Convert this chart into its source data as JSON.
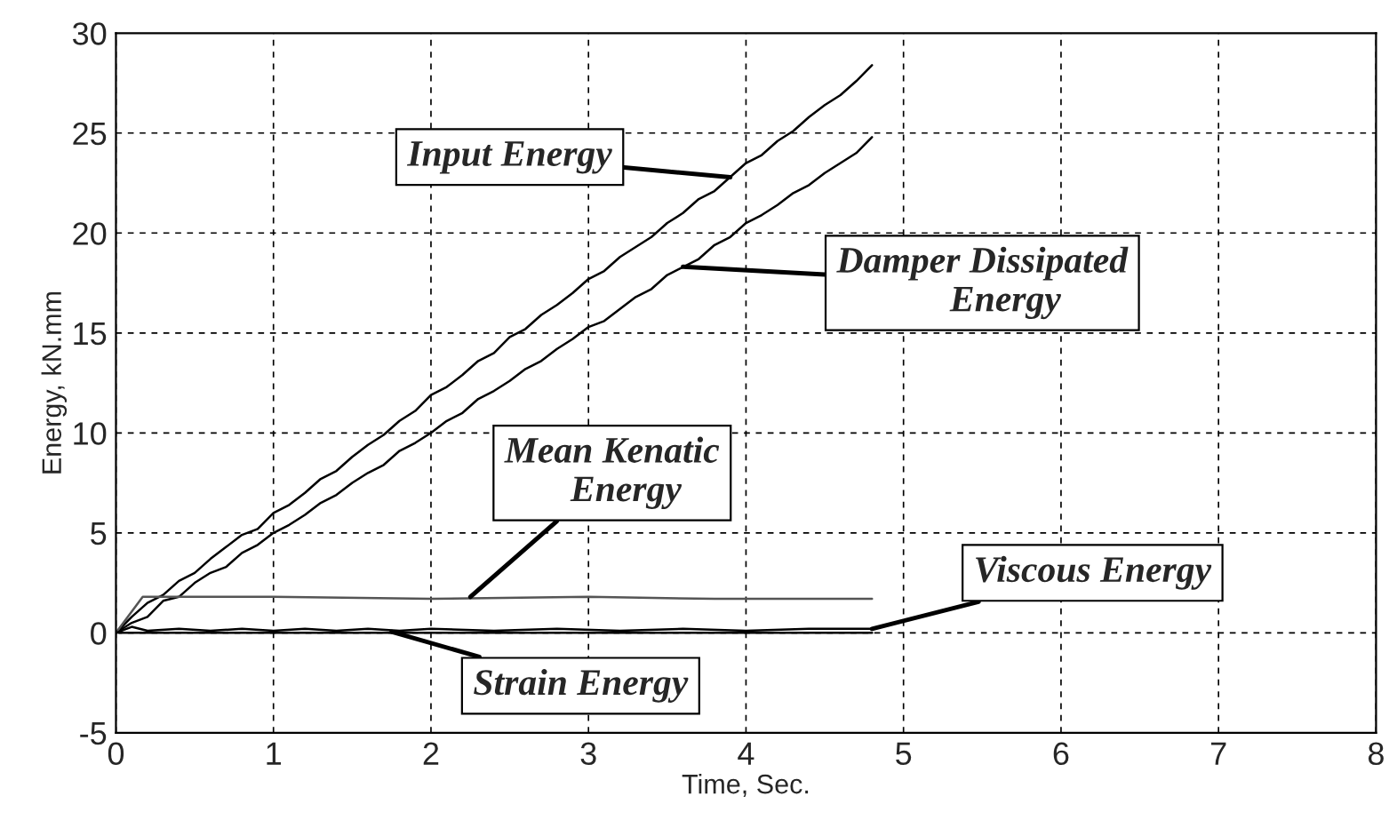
{
  "chart_data": {
    "type": "line",
    "xlabel": "Time, Sec.",
    "ylabel": "Energy, kN.mm",
    "xlim": [
      0,
      8
    ],
    "xticks": [
      0,
      1,
      2,
      3,
      4,
      5,
      6,
      7,
      8
    ],
    "ylim": [
      -5,
      30
    ],
    "yticks": [
      -5,
      0,
      5,
      10,
      15,
      20,
      25,
      30
    ],
    "grid": true,
    "line_style": "solid",
    "marker": "none",
    "series": [
      {
        "color": "#000000",
        "x": [
          0,
          0.1,
          0.2,
          0.3,
          0.4,
          0.5,
          0.6,
          0.7,
          0.8,
          0.9,
          1.0,
          1.1,
          1.2,
          1.3,
          1.4,
          1.5,
          1.6,
          1.7,
          1.8,
          1.9,
          2.0,
          2.1,
          2.2,
          2.3,
          2.4,
          2.5,
          2.6,
          2.7,
          2.8,
          2.9,
          3.0,
          3.1,
          3.2,
          3.3,
          3.4,
          3.5,
          3.6,
          3.7,
          3.8,
          3.9,
          4.0,
          4.1,
          4.2,
          4.3,
          4.4,
          4.5,
          4.6,
          4.7,
          4.8
        ],
        "values": [
          0,
          0.8,
          1.5,
          1.9,
          2.6,
          3.0,
          3.7,
          4.3,
          4.9,
          5.2,
          6.0,
          6.4,
          7.0,
          7.7,
          8.1,
          8.8,
          9.4,
          9.9,
          10.6,
          11.1,
          11.9,
          12.3,
          12.9,
          13.6,
          14.0,
          14.8,
          15.2,
          15.9,
          16.4,
          17.0,
          17.7,
          18.1,
          18.8,
          19.3,
          19.8,
          20.5,
          21.0,
          21.7,
          22.1,
          22.8,
          23.5,
          23.9,
          24.6,
          25.1,
          25.8,
          26.4,
          26.9,
          27.6,
          28.4
        ]
      },
      {
        "color": "#000000",
        "x": [
          0,
          0.1,
          0.2,
          0.3,
          0.4,
          0.5,
          0.6,
          0.7,
          0.8,
          0.9,
          1.0,
          1.1,
          1.2,
          1.3,
          1.4,
          1.5,
          1.6,
          1.7,
          1.8,
          1.9,
          2.0,
          2.1,
          2.2,
          2.3,
          2.4,
          2.5,
          2.6,
          2.7,
          2.8,
          2.9,
          3.0,
          3.1,
          3.2,
          3.3,
          3.4,
          3.5,
          3.6,
          3.7,
          3.8,
          3.9,
          4.0,
          4.1,
          4.2,
          4.3,
          4.4,
          4.5,
          4.6,
          4.7,
          4.8
        ],
        "values": [
          0,
          0.5,
          0.8,
          1.6,
          1.8,
          2.5,
          3.0,
          3.3,
          4.0,
          4.4,
          5.0,
          5.4,
          5.9,
          6.5,
          6.9,
          7.5,
          8.0,
          8.4,
          9.1,
          9.5,
          10.0,
          10.6,
          11.0,
          11.7,
          12.1,
          12.6,
          13.2,
          13.6,
          14.2,
          14.7,
          15.3,
          15.6,
          16.2,
          16.8,
          17.2,
          17.9,
          18.3,
          18.7,
          19.4,
          19.8,
          20.5,
          20.9,
          21.4,
          22.0,
          22.4,
          23.0,
          23.5,
          24.0,
          24.8
        ]
      },
      {
        "color": "#555555",
        "x": [
          0,
          0.17,
          1.0,
          2.0,
          3.0,
          3.8,
          4.8
        ],
        "values": [
          0,
          1.8,
          1.8,
          1.7,
          1.8,
          1.7,
          1.7
        ]
      },
      {
        "color": "#000000",
        "x": [
          0,
          0.1,
          0.2,
          0.4,
          0.6,
          0.8,
          1.0,
          1.2,
          1.4,
          1.6,
          1.8,
          2.0,
          2.4,
          2.8,
          3.2,
          3.6,
          4.0,
          4.4,
          4.8
        ],
        "values": [
          0,
          0.3,
          0.1,
          0.2,
          0.1,
          0.2,
          0.1,
          0.2,
          0.1,
          0.2,
          0.1,
          0.2,
          0.1,
          0.2,
          0.1,
          0.2,
          0.1,
          0.2,
          0.2
        ]
      },
      {
        "color": "#000000",
        "x": [
          0.02,
          0.5,
          1.0,
          1.5,
          2.0,
          2.5,
          3.0,
          3.5,
          4.0,
          4.5,
          4.8
        ],
        "values": [
          0,
          0,
          0,
          0,
          0,
          0,
          0,
          0,
          0,
          0,
          0
        ]
      }
    ],
    "annotations": [
      "Input Energy",
      "Damper Dissipated\n     Energy",
      {
        "text": "Mean Kenatic\n   Energy",
        "x": 2.25,
        "y": 1.8
      },
      {
        "text": "Viscous Energy",
        "x": 4.8,
        "y": 0.2
      },
      {
        "text": "Strain Energy",
        "x": 1.75,
        "y": 0.05
      }
    ]
  }
}
